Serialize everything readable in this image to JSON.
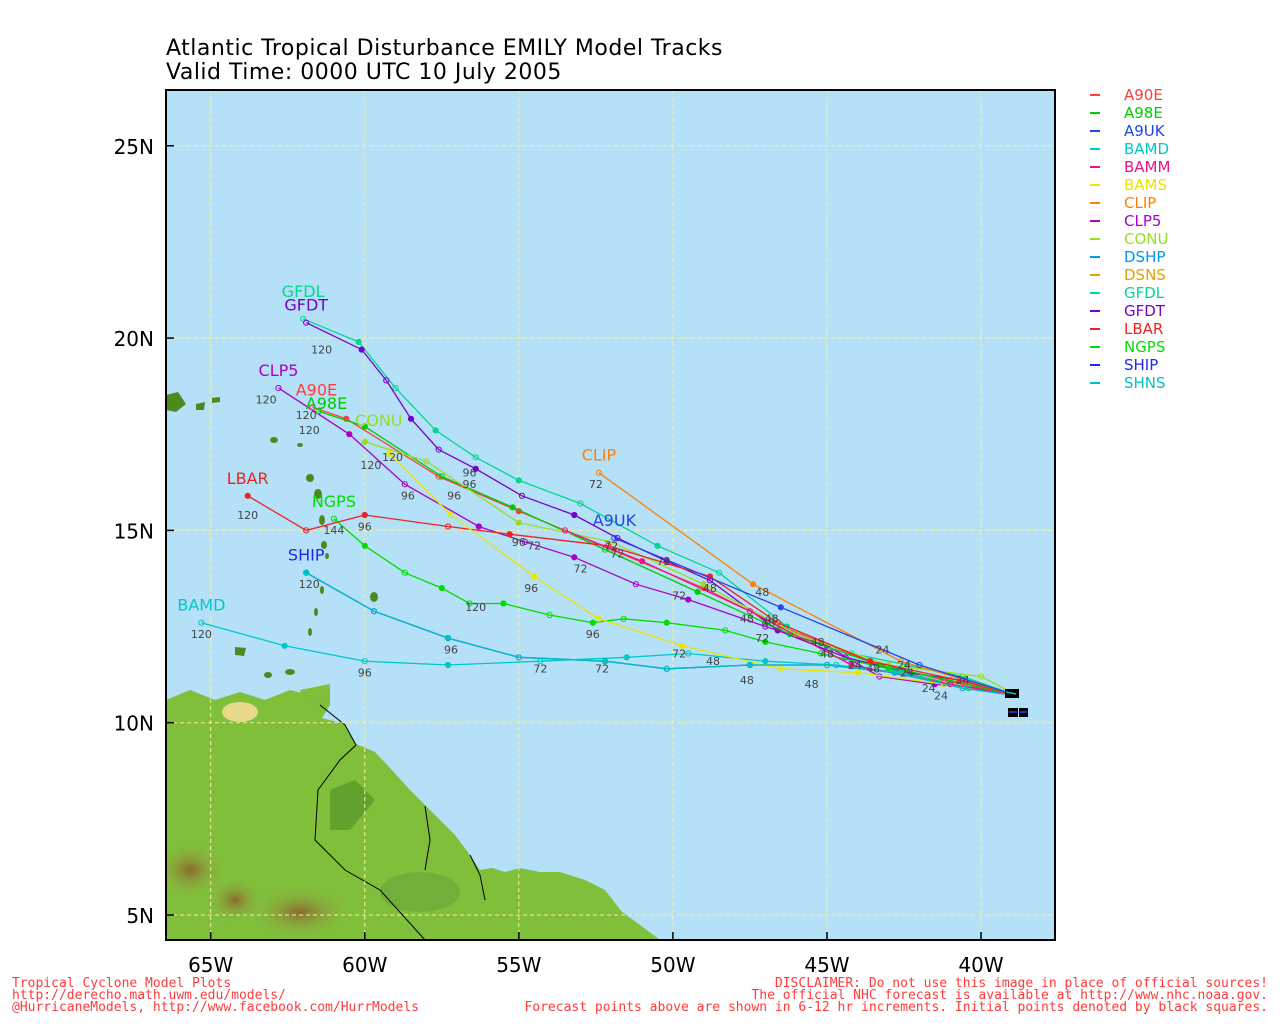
{
  "title": {
    "line1": "Atlantic Tropical Disturbance EMILY Model Tracks",
    "line2": "Valid Time: 0000 UTC 10 July 2005"
  },
  "axes": {
    "lat_ticks": [
      "25N",
      "20N",
      "15N",
      "10N",
      "5N"
    ],
    "lon_ticks": [
      "65W",
      "60W",
      "55W",
      "50W",
      "45W",
      "40W"
    ]
  },
  "legend": [
    {
      "name": "A90E",
      "color": "#ff3b3b"
    },
    {
      "name": "A98E",
      "color": "#00cc00"
    },
    {
      "name": "A9UK",
      "color": "#2244ee"
    },
    {
      "name": "BAMD",
      "color": "#00c8c8"
    },
    {
      "name": "BAMM",
      "color": "#ee1188"
    },
    {
      "name": "BAMS",
      "color": "#e6e600"
    },
    {
      "name": "CLIP",
      "color": "#ff8000"
    },
    {
      "name": "CLP5",
      "color": "#aa00cc"
    },
    {
      "name": "CONU",
      "color": "#99dd22"
    },
    {
      "name": "DSHP",
      "color": "#0099ee"
    },
    {
      "name": "DSNS",
      "color": "#e6a000"
    },
    {
      "name": "GFDL",
      "color": "#00d890"
    },
    {
      "name": "GFDT",
      "color": "#7700cc"
    },
    {
      "name": "LBAR",
      "color": "#ee2222"
    },
    {
      "name": "NGPS",
      "color": "#00dd00"
    },
    {
      "name": "SHIP",
      "color": "#2222ff"
    },
    {
      "name": "SHNS",
      "color": "#00c0c0"
    }
  ],
  "track_labels": {
    "GFDL": "GFDL",
    "GFDT": "GFDT",
    "CLP5": "CLP5",
    "A90E": "A90E",
    "A98E": "A98E",
    "CONU": "CONU",
    "LBAR": "LBAR",
    "NGPS": "NGPS",
    "SHIP": "SHIP",
    "BAMD": "BAMD",
    "CLIP": "CLIP",
    "A9UK": "A9UK"
  },
  "footer": {
    "left": [
      "Tropical Cyclone Model Plots",
      "http://derecho.math.uwm.edu/models/",
      "@HurricaneModels, http://www.facebook.com/HurrModels"
    ],
    "right": [
      "DISCLAIMER: Do not use this image in place of official sources!",
      "The official NHC forecast is available at http://www.nhc.noaa.gov.",
      "Forecast points above are shown in 6-12 hr increments. Initial points denoted by black squares."
    ]
  },
  "colors": {
    "ocean": "#b4e0f8",
    "grid": "#f5f0a0",
    "land_green": "#7fbf3a",
    "land_dark": "#4d8a1e",
    "land_brown": "#a8895a"
  },
  "tracks": {
    "GFDL": [
      [
        -38.8,
        10.7
      ],
      [
        -40.6,
        11.2
      ],
      [
        -42.4,
        11.5
      ],
      [
        -44.2,
        11.8
      ],
      [
        -46.3,
        12.5
      ],
      [
        -48.5,
        13.9
      ],
      [
        -50.5,
        14.6
      ],
      [
        -53.0,
        15.7
      ],
      [
        -55.0,
        16.3
      ],
      [
        -56.4,
        16.9
      ],
      [
        -57.7,
        17.6
      ],
      [
        -59.0,
        18.7
      ],
      [
        -60.2,
        19.9
      ],
      [
        -62.0,
        20.5
      ]
    ],
    "GFDT": [
      [
        -38.8,
        10.7
      ],
      [
        -40.6,
        11.1
      ],
      [
        -42.4,
        11.3
      ],
      [
        -44.4,
        11.7
      ],
      [
        -46.6,
        12.4
      ],
      [
        -48.8,
        13.7
      ],
      [
        -50.2,
        14.2
      ],
      [
        -51.8,
        14.8
      ],
      [
        -53.2,
        15.4
      ],
      [
        -54.9,
        15.9
      ],
      [
        -56.4,
        16.6
      ],
      [
        -57.6,
        17.1
      ],
      [
        -58.5,
        17.9
      ],
      [
        -59.3,
        18.9
      ],
      [
        -60.1,
        19.7
      ],
      [
        -61.9,
        20.4
      ]
    ],
    "CLP5": [
      [
        -38.8,
        10.7
      ],
      [
        -40.1,
        10.9
      ],
      [
        -41.5,
        11.0
      ],
      [
        -43.3,
        11.2
      ],
      [
        -45.0,
        12.0
      ],
      [
        -47.0,
        12.5
      ],
      [
        -49.5,
        13.2
      ],
      [
        -51.2,
        13.6
      ],
      [
        -53.2,
        14.3
      ],
      [
        -54.8,
        14.7
      ],
      [
        -56.3,
        15.1
      ],
      [
        -58.7,
        16.2
      ],
      [
        -60.5,
        17.5
      ],
      [
        -62.8,
        18.7
      ]
    ],
    "A90E": [
      [
        -38.8,
        10.7
      ],
      [
        -41.2,
        11.1
      ],
      [
        -43.6,
        11.6
      ],
      [
        -46.5,
        12.5
      ],
      [
        -49.0,
        13.5
      ],
      [
        -52.0,
        14.5
      ],
      [
        -55.0,
        15.5
      ],
      [
        -57.6,
        16.4
      ],
      [
        -60.6,
        17.9
      ],
      [
        -61.7,
        18.2
      ]
    ],
    "A98E": [
      [
        -38.8,
        10.7
      ],
      [
        -41.0,
        11.1
      ],
      [
        -43.3,
        11.5
      ],
      [
        -46.2,
        12.3
      ],
      [
        -49.2,
        13.4
      ],
      [
        -52.2,
        14.5
      ],
      [
        -55.2,
        15.6
      ],
      [
        -57.5,
        16.4
      ],
      [
        -60.0,
        17.7
      ],
      [
        -61.5,
        18.1
      ]
    ],
    "CONU": [
      [
        -38.8,
        10.7
      ],
      [
        -40.0,
        11.2
      ],
      [
        -43.0,
        11.5
      ],
      [
        -46.0,
        12.3
      ],
      [
        -49.0,
        13.6
      ],
      [
        -52.0,
        14.7
      ],
      [
        -55.0,
        15.2
      ],
      [
        -58.0,
        16.8
      ],
      [
        -60.0,
        17.3
      ]
    ],
    "LBAR": [
      [
        -38.8,
        10.7
      ],
      [
        -40.7,
        11.1
      ],
      [
        -43.6,
        11.6
      ],
      [
        -46.6,
        12.6
      ],
      [
        -48.8,
        13.8
      ],
      [
        -52.1,
        14.6
      ],
      [
        -55.3,
        14.9
      ],
      [
        -57.3,
        15.1
      ],
      [
        -60.0,
        15.4
      ],
      [
        -61.9,
        15.0
      ],
      [
        -63.8,
        15.9
      ]
    ],
    "NGPS": [
      [
        -38.8,
        10.7
      ],
      [
        -40.4,
        10.9
      ],
      [
        -43.0,
        11.4
      ],
      [
        -45.2,
        11.8
      ],
      [
        -47.0,
        12.1
      ],
      [
        -48.3,
        12.4
      ],
      [
        -50.2,
        12.6
      ],
      [
        -51.6,
        12.7
      ],
      [
        -52.6,
        12.6
      ],
      [
        -54.0,
        12.8
      ],
      [
        -55.5,
        13.1
      ],
      [
        -56.6,
        13.1
      ],
      [
        -57.5,
        13.5
      ],
      [
        -58.7,
        13.9
      ],
      [
        -60.0,
        14.6
      ],
      [
        -61.0,
        15.3
      ]
    ],
    "SHIP": [
      [
        -38.8,
        10.7
      ],
      [
        -40.6,
        10.9
      ],
      [
        -42.8,
        11.3
      ],
      [
        -45.0,
        11.5
      ],
      [
        -47.5,
        11.5
      ],
      [
        -50.2,
        11.4
      ],
      [
        -52.2,
        11.6
      ],
      [
        -55.0,
        11.7
      ],
      [
        -57.3,
        12.2
      ],
      [
        -59.7,
        12.9
      ],
      [
        -61.9,
        13.9
      ]
    ],
    "BAMD": [
      [
        -38.8,
        10.7
      ],
      [
        -40.4,
        10.9
      ],
      [
        -42.6,
        11.3
      ],
      [
        -44.7,
        11.5
      ],
      [
        -47.0,
        11.6
      ],
      [
        -49.5,
        11.8
      ],
      [
        -51.5,
        11.7
      ],
      [
        -54.3,
        11.6
      ],
      [
        -57.3,
        11.5
      ],
      [
        -60.0,
        11.6
      ],
      [
        -62.6,
        12.0
      ],
      [
        -65.3,
        12.6
      ]
    ],
    "BAMS": [
      [
        -38.8,
        10.7
      ],
      [
        -41.2,
        11.0
      ],
      [
        -44.0,
        11.3
      ],
      [
        -46.5,
        11.4
      ],
      [
        -49.7,
        12.0
      ],
      [
        -52.4,
        12.7
      ],
      [
        -54.5,
        13.8
      ],
      [
        -57.2,
        15.4
      ],
      [
        -59.2,
        17.0
      ]
    ],
    "CLIP": [
      [
        -38.8,
        10.7
      ],
      [
        -42.6,
        11.6
      ],
      [
        -47.4,
        13.6
      ],
      [
        -52.4,
        16.5
      ]
    ],
    "A9UK": [
      [
        -38.8,
        10.7
      ],
      [
        -42.0,
        11.5
      ],
      [
        -46.5,
        13.0
      ],
      [
        -51.9,
        14.8
      ]
    ],
    "BAMM": [
      [
        -38.8,
        10.7
      ],
      [
        -41.0,
        11.0
      ],
      [
        -44.2,
        11.5
      ],
      [
        -47.5,
        12.9
      ],
      [
        -51.0,
        14.2
      ],
      [
        -53.5,
        15.0
      ]
    ],
    "SHNS": [
      [
        -38.8,
        10.7
      ],
      [
        -40.6,
        10.9
      ],
      [
        -42.8,
        11.3
      ],
      [
        -45.0,
        11.5
      ],
      [
        -47.5,
        11.5
      ],
      [
        -50.2,
        11.4
      ],
      [
        -52.2,
        11.6
      ],
      [
        -55.0,
        11.7
      ],
      [
        -57.3,
        12.2
      ],
      [
        -59.7,
        12.9
      ],
      [
        -61.9,
        13.9
      ]
    ]
  },
  "hour_labels": [
    {
      "text": "120",
      "lon": -61.4,
      "lat": 19.6
    },
    {
      "text": "120",
      "lon": -63.2,
      "lat": 18.3
    },
    {
      "text": "120",
      "lon": -61.9,
      "lat": 17.9
    },
    {
      "text": "120",
      "lon": -61.8,
      "lat": 17.5
    },
    {
      "text": "120",
      "lon": -59.8,
      "lat": 16.6
    },
    {
      "text": "120",
      "lon": -59.1,
      "lat": 16.8
    },
    {
      "text": "120",
      "lon": -63.8,
      "lat": 15.3
    },
    {
      "text": "144",
      "lon": -61.0,
      "lat": 14.9
    },
    {
      "text": "120",
      "lon": -61.8,
      "lat": 13.5
    },
    {
      "text": "120",
      "lon": -65.3,
      "lat": 12.2
    },
    {
      "text": "120",
      "lon": -56.4,
      "lat": 12.9
    },
    {
      "text": "96",
      "lon": -56.6,
      "lat": 16.4
    },
    {
      "text": "96",
      "lon": -56.6,
      "lat": 16.1
    },
    {
      "text": "96",
      "lon": -58.6,
      "lat": 15.8
    },
    {
      "text": "96",
      "lon": -57.1,
      "lat": 15.8
    },
    {
      "text": "96",
      "lon": -60.0,
      "lat": 15.0
    },
    {
      "text": "96",
      "lon": -55.0,
      "lat": 14.6
    },
    {
      "text": "96",
      "lon": -54.6,
      "lat": 13.4
    },
    {
      "text": "96",
      "lon": -52.6,
      "lat": 12.2
    },
    {
      "text": "96",
      "lon": -57.2,
      "lat": 11.8
    },
    {
      "text": "96",
      "lon": -60.0,
      "lat": 11.2
    },
    {
      "text": "72",
      "lon": -52.5,
      "lat": 16.1
    },
    {
      "text": "72",
      "lon": -54.5,
      "lat": 14.5
    },
    {
      "text": "72",
      "lon": -52.0,
      "lat": 14.5
    },
    {
      "text": "72",
      "lon": -51.8,
      "lat": 14.3
    },
    {
      "text": "72",
      "lon": -53.0,
      "lat": 13.9
    },
    {
      "text": "72",
      "lon": -50.3,
      "lat": 14.1
    },
    {
      "text": "72",
      "lon": -49.8,
      "lat": 13.2
    },
    {
      "text": "72",
      "lon": -47.1,
      "lat": 12.1
    },
    {
      "text": "72",
      "lon": -49.8,
      "lat": 11.7
    },
    {
      "text": "72",
      "lon": -54.3,
      "lat": 11.3
    },
    {
      "text": "72",
      "lon": -52.3,
      "lat": 11.3
    },
    {
      "text": "48",
      "lon": -47.1,
      "lat": 13.3
    },
    {
      "text": "48",
      "lon": -48.8,
      "lat": 13.4
    },
    {
      "text": "48",
      "lon": -47.6,
      "lat": 12.6
    },
    {
      "text": "48",
      "lon": -46.8,
      "lat": 12.6
    },
    {
      "text": "48",
      "lon": -46.9,
      "lat": 12.5
    },
    {
      "text": "48",
      "lon": -45.3,
      "lat": 12.0
    },
    {
      "text": "48",
      "lon": -45.0,
      "lat": 11.7
    },
    {
      "text": "48",
      "lon": -48.7,
      "lat": 11.5
    },
    {
      "text": "48",
      "lon": -47.6,
      "lat": 11.0
    },
    {
      "text": "48",
      "lon": -45.5,
      "lat": 10.9
    },
    {
      "text": "48",
      "lon": -43.5,
      "lat": 11.3
    },
    {
      "text": "24",
      "lon": -43.2,
      "lat": 11.8
    },
    {
      "text": "24",
      "lon": -44.1,
      "lat": 11.4
    },
    {
      "text": "24",
      "lon": -42.5,
      "lat": 11.4
    },
    {
      "text": "24",
      "lon": -42.4,
      "lat": 11.2
    },
    {
      "text": "24",
      "lon": -41.7,
      "lat": 10.8
    },
    {
      "text": "24",
      "lon": -41.3,
      "lat": 10.6
    },
    {
      "text": "24",
      "lon": -40.6,
      "lat": 11.0
    }
  ]
}
